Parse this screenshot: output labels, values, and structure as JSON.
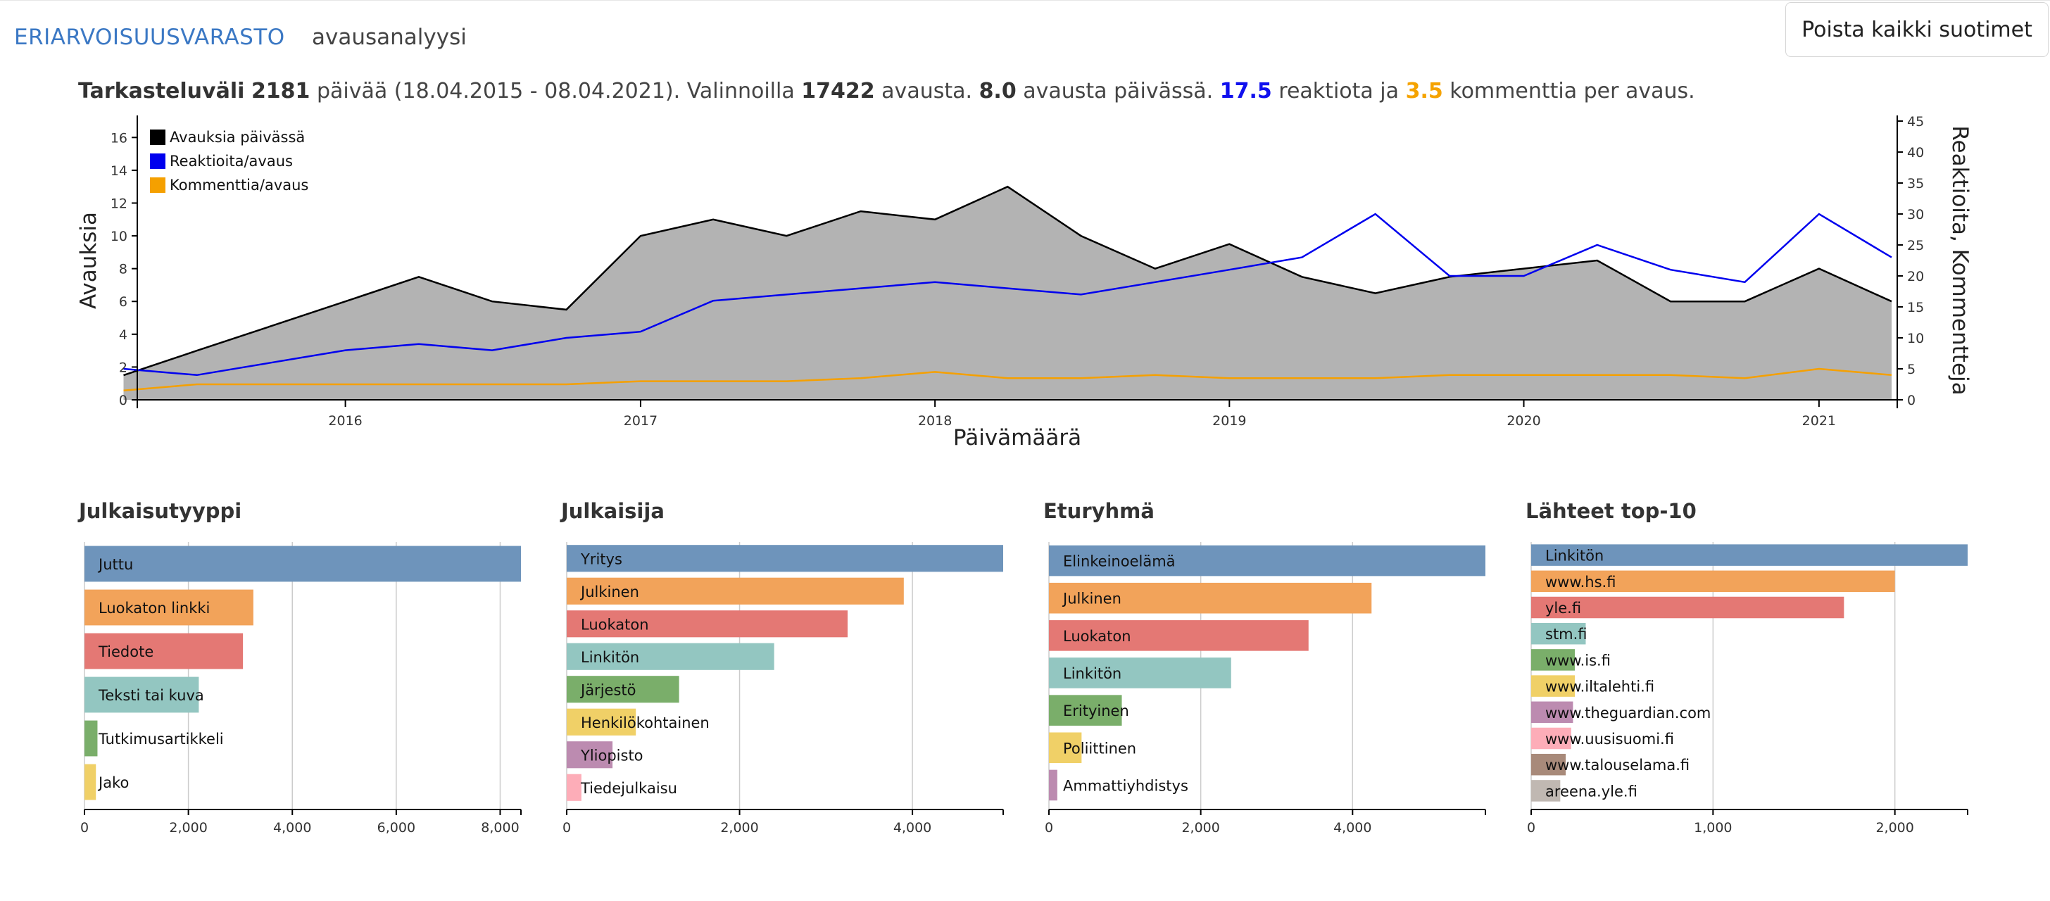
{
  "header": {
    "brand": "ERIARVOISUUSVARASTO",
    "subtitle": "avausanalyysi",
    "clear_button": "Poista kaikki suotimet"
  },
  "summary": {
    "label_range": "Tarkasteluväli",
    "days": "2181",
    "text1": " päivää (18.04.2015 - 08.04.2021). Valinnoilla ",
    "openings": "17422",
    "text2": " avausta. ",
    "per_day": "8.0",
    "text3": " avausta päivässä. ",
    "reactions": "17.5",
    "text4": " reaktiota ja ",
    "comments": "3.5",
    "text5": " kommenttia per avaus."
  },
  "colors": {
    "brand": "#3b78c4",
    "openings": "#000000",
    "area": "#b3b3b3",
    "reactions": "#0000ee",
    "comments": "#f5a000",
    "bar_palette": [
      "#6e94bb",
      "#f2a35a",
      "#e47874",
      "#93c6c1",
      "#7aae6a",
      "#f0d067",
      "#bc8bb0",
      "#fdadb8",
      "#a88a7a",
      "#c0b8b2"
    ]
  },
  "chart_data": [
    {
      "type": "line",
      "xlabel": "Päivämäärä",
      "ylabel": "Avauksia",
      "y2label": "Reaktioita, Kommentteja",
      "x_range": [
        "2015-04-18",
        "2021-04-08"
      ],
      "x_ticks": [
        "2016",
        "2017",
        "2018",
        "2019",
        "2020",
        "2021"
      ],
      "ylim": [
        0,
        17
      ],
      "y_ticks": [
        0,
        2,
        4,
        6,
        8,
        10,
        12,
        14,
        16
      ],
      "y2lim": [
        0,
        45
      ],
      "y2_ticks": [
        0,
        5,
        10,
        15,
        20,
        25,
        30,
        35,
        40,
        45
      ],
      "legend": "top-left",
      "series": [
        {
          "name": "Avauksia päivässä",
          "axis": "left",
          "style": "area",
          "x": [
            "2015-04",
            "2015-07",
            "2015-10",
            "2016-01",
            "2016-04",
            "2016-07",
            "2016-10",
            "2017-01",
            "2017-04",
            "2017-07",
            "2017-10",
            "2018-01",
            "2018-04",
            "2018-07",
            "2018-10",
            "2019-01",
            "2019-04",
            "2019-07",
            "2019-10",
            "2020-01",
            "2020-04",
            "2020-07",
            "2020-10",
            "2021-01",
            "2021-04"
          ],
          "values": [
            1.5,
            3,
            4.5,
            6,
            7.5,
            6,
            5.5,
            10,
            11,
            10,
            11.5,
            11,
            13,
            10,
            8,
            9.5,
            7.5,
            6.5,
            7.5,
            8,
            8.5,
            6,
            6,
            8,
            6
          ]
        },
        {
          "name": "Reaktioita/avaus",
          "axis": "right",
          "x": [
            "2015-04",
            "2015-07",
            "2015-10",
            "2016-01",
            "2016-04",
            "2016-07",
            "2016-10",
            "2017-01",
            "2017-04",
            "2017-07",
            "2017-10",
            "2018-01",
            "2018-04",
            "2018-07",
            "2018-10",
            "2019-01",
            "2019-04",
            "2019-07",
            "2019-10",
            "2020-01",
            "2020-04",
            "2020-07",
            "2020-10",
            "2021-01",
            "2021-04"
          ],
          "values": [
            5,
            4,
            6,
            8,
            9,
            8,
            10,
            11,
            16,
            17,
            18,
            19,
            18,
            17,
            19,
            21,
            23,
            30,
            20,
            20,
            25,
            21,
            19,
            30,
            23
          ]
        },
        {
          "name": "Kommenttia/avaus",
          "axis": "right",
          "x": [
            "2015-04",
            "2015-07",
            "2015-10",
            "2016-01",
            "2016-04",
            "2016-07",
            "2016-10",
            "2017-01",
            "2017-04",
            "2017-07",
            "2017-10",
            "2018-01",
            "2018-04",
            "2018-07",
            "2018-10",
            "2019-01",
            "2019-04",
            "2019-07",
            "2019-10",
            "2020-01",
            "2020-04",
            "2020-07",
            "2020-10",
            "2021-01",
            "2021-04"
          ],
          "values": [
            1.5,
            2.5,
            2.5,
            2.5,
            2.5,
            2.5,
            2.5,
            3,
            3,
            3,
            3.5,
            4.5,
            3.5,
            3.5,
            4,
            3.5,
            3.5,
            3.5,
            4,
            4,
            4,
            4,
            3.5,
            5,
            4
          ]
        }
      ]
    },
    {
      "type": "bar",
      "orientation": "horizontal",
      "title": "Julkaisutyyppi",
      "categories": [
        "Juttu",
        "Luokaton linkki",
        "Tiedote",
        "Teksti tai kuva",
        "Tutkimusartikkeli",
        "Jako"
      ],
      "values": [
        8400,
        3250,
        3050,
        2200,
        250,
        220
      ],
      "x_ticks": [
        "0",
        "2,000",
        "4,000",
        "6,000",
        "8,000"
      ],
      "xlim": [
        0,
        8400
      ]
    },
    {
      "type": "bar",
      "orientation": "horizontal",
      "title": "Julkaisija",
      "categories": [
        "Yritys",
        "Julkinen",
        "Luokaton",
        "Linkitön",
        "Järjestö",
        "Henkilökohtainen",
        "Yliopisto",
        "Tiedejulkaisu"
      ],
      "values": [
        5050,
        3900,
        3250,
        2400,
        1300,
        800,
        530,
        170
      ],
      "x_ticks": [
        "0",
        "2,000",
        "4,000"
      ],
      "xlim": [
        0,
        5050
      ]
    },
    {
      "type": "bar",
      "orientation": "horizontal",
      "title": "Eturyhmä",
      "categories": [
        "Elinkeinoelämä",
        "Julkinen",
        "Luokaton",
        "Linkitön",
        "Erityinen",
        "Poliittinen",
        "Ammattiyhdistys"
      ],
      "values": [
        5750,
        4250,
        3420,
        2400,
        960,
        430,
        110
      ],
      "x_ticks": [
        "0",
        "2,000",
        "4,000"
      ],
      "xlim": [
        0,
        5750
      ]
    },
    {
      "type": "bar",
      "orientation": "horizontal",
      "title": "Lähteet top-10",
      "categories": [
        "Linkitön",
        "www.hs.fi",
        "yle.fi",
        "stm.fi",
        "www.is.fi",
        "www.iltalehti.fi",
        "www.theguardian.com",
        "www.uusisuomi.fi",
        "www.talouselama.fi",
        "areena.yle.fi"
      ],
      "values": [
        2400,
        2000,
        1720,
        300,
        240,
        240,
        230,
        220,
        190,
        160
      ],
      "x_ticks": [
        "0",
        "1,000",
        "2,000"
      ],
      "xlim": [
        0,
        2400
      ]
    }
  ]
}
